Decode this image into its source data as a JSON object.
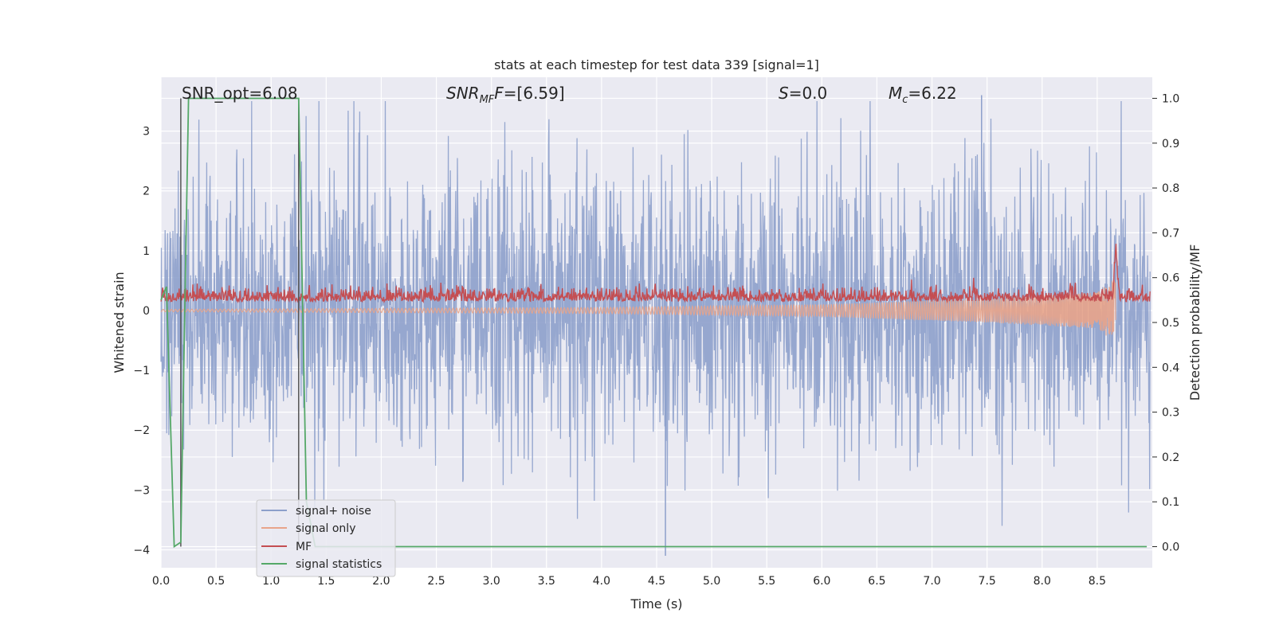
{
  "chart_data": {
    "type": "line",
    "title": "stats at each timestep for test data 339 [signal=1]",
    "xlabel": "Time (s)",
    "ylabel": "Whitened strain",
    "ylabel_right": "Detection probability/MF",
    "xlim": [
      0.0,
      9.0
    ],
    "ylim": [
      -4.3,
      3.9
    ],
    "ylim_right": [
      -0.047,
      1.047
    ],
    "grid": true,
    "x_ticks": [
      "0.0",
      "0.5",
      "1.0",
      "1.5",
      "2.0",
      "2.5",
      "3.0",
      "3.5",
      "4.0",
      "4.5",
      "5.0",
      "5.5",
      "6.0",
      "6.5",
      "7.0",
      "7.5",
      "8.0",
      "8.5"
    ],
    "y_ticks": [
      "3",
      "2",
      "1",
      "0",
      "−1",
      "−2",
      "−3",
      "−4"
    ],
    "y_ticks_right": [
      "1.0",
      "0.9",
      "0.8",
      "0.7",
      "0.6",
      "0.5",
      "0.4",
      "0.3",
      "0.2",
      "0.1",
      "0.0"
    ],
    "annotations": {
      "snr_opt": "SNR_opt=6.08",
      "snr_mf_name": "SNR",
      "snr_mf_sub": "MF",
      "snr_mf_value": "=[6.59]",
      "s_name": "S",
      "s_value": "=0.0",
      "mc_name": "M",
      "mc_sub": "c",
      "mc_value": "=6.22"
    },
    "legend_position": "lower-left",
    "series": [
      {
        "name": "signal+ noise",
        "color": "#8da0cb",
        "description_amplitude_approx": 1.2,
        "extremes": {
          "max": 3.6,
          "min": -4.1
        }
      },
      {
        "name": "signal only",
        "color": "#e8a48a",
        "amplitude_envelope": [
          [
            0.0,
            0.02
          ],
          [
            4.0,
            0.05
          ],
          [
            6.0,
            0.1
          ],
          [
            7.5,
            0.2
          ],
          [
            8.5,
            0.3
          ],
          [
            8.67,
            0.55
          ]
        ]
      },
      {
        "name": "MF",
        "color": "#c44e52",
        "baseline": 0.2,
        "peak": {
          "x": 8.67,
          "y": 1.0
        }
      },
      {
        "name": "signal statistics",
        "color": "#55a868",
        "x": [
          0.0,
          0.05,
          0.12,
          0.18,
          0.2,
          0.25,
          0.3,
          0.6,
          0.9,
          1.2,
          1.25,
          1.32,
          1.4,
          2.0,
          3.0,
          4.0,
          5.0,
          6.0,
          7.0,
          8.0,
          8.95
        ],
        "y": [
          0.55,
          0.58,
          0.0,
          0.01,
          0.3,
          1.0,
          1.0,
          1.0,
          1.0,
          1.0,
          1.0,
          0.1,
          0.0,
          0.0,
          0.0,
          0.0,
          0.0,
          0.0,
          0.0,
          0.0,
          0.0
        ]
      }
    ],
    "vlines": [
      0.18,
      1.25
    ]
  }
}
